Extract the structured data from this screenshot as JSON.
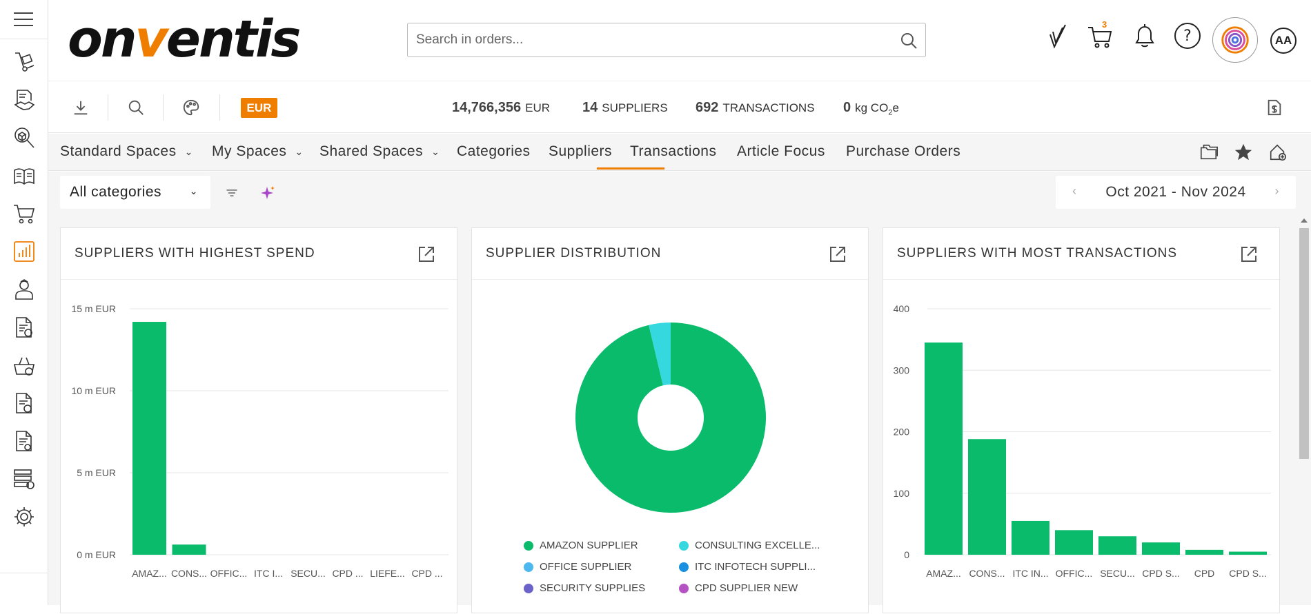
{
  "header": {
    "logo_pre": "on",
    "logo_v": "v",
    "logo_post": "entis",
    "search_placeholder": "Search in orders...",
    "cart_count": "3",
    "help_label": "?",
    "avatar_initials": "AA"
  },
  "toolbar": {
    "currency": "EUR",
    "kpis": [
      {
        "value": "14,766,356",
        "label": "EUR"
      },
      {
        "value": "14",
        "label": "SUPPLIERS"
      },
      {
        "value": "692",
        "label": "TRANSACTIONS"
      },
      {
        "value": "0",
        "label_pre": "kg CO",
        "label_sub": "2",
        "label_post": "e"
      }
    ]
  },
  "nav": {
    "tabs": [
      {
        "label": "Standard Spaces",
        "dropdown": true
      },
      {
        "label": "My Spaces",
        "dropdown": true
      },
      {
        "label": "Shared Spaces",
        "dropdown": true
      },
      {
        "label": "Categories",
        "dropdown": false
      },
      {
        "label": "Suppliers",
        "dropdown": false,
        "active": true
      },
      {
        "label": "Transactions",
        "dropdown": false
      },
      {
        "label": "Article Focus",
        "dropdown": false
      },
      {
        "label": "Purchase Orders",
        "dropdown": false
      }
    ]
  },
  "filter": {
    "category_value": "All categories",
    "date_range": "Oct 2021 - Nov 2024",
    "prev_arrow": "‹",
    "next_arrow": "›"
  },
  "colors": {
    "accent": "#ef7d00",
    "bar": "#0abb6c",
    "pie_main": "#0abb6c",
    "pie_secondary": "#34d8de"
  },
  "chart_data": [
    {
      "type": "bar",
      "title": "SUPPLIERS WITH HIGHEST SPEND",
      "categories": [
        "AMAZ...",
        "CONS...",
        "OFFIC...",
        "ITC I...",
        "SECU...",
        "CPD ...",
        "LIEFE...",
        "CPD ..."
      ],
      "values": [
        14200000,
        620000,
        0,
        0,
        0,
        0,
        0,
        0
      ],
      "y_ticks": [
        "0 m EUR",
        "5 m EUR",
        "10 m EUR",
        "15 m EUR"
      ],
      "ylim": [
        0,
        15000000
      ],
      "grid": true
    },
    {
      "type": "pie",
      "title": "SUPPLIER DISTRIBUTION",
      "donut": true,
      "slices": [
        {
          "name": "AMAZON SUPPLIER",
          "value": 96.3,
          "color": "#0abb6c"
        },
        {
          "name": "CONSULTING EXCELLE...",
          "value": 3.7,
          "color": "#34d8de"
        },
        {
          "name": "OFFICE SUPPLIER",
          "value": 0,
          "color": "#4db8f0"
        },
        {
          "name": "ITC INFOTECH SUPPLI...",
          "value": 0,
          "color": "#1b8fe0"
        },
        {
          "name": "SECURITY SUPPLIES",
          "value": 0,
          "color": "#6b63c9"
        },
        {
          "name": "CPD SUPPLIER NEW",
          "value": 0,
          "color": "#b452c4"
        }
      ]
    },
    {
      "type": "bar",
      "title": "SUPPLIERS WITH MOST TRANSACTIONS",
      "categories": [
        "AMAZ...",
        "CONS...",
        "ITC IN...",
        "OFFIC...",
        "SECU...",
        "CPD S...",
        "CPD",
        "CPD S..."
      ],
      "values": [
        345,
        188,
        55,
        40,
        30,
        20,
        8,
        5
      ],
      "y_ticks": [
        "0",
        "100",
        "200",
        "300",
        "400"
      ],
      "ylim": [
        0,
        400
      ],
      "grid": true
    }
  ]
}
